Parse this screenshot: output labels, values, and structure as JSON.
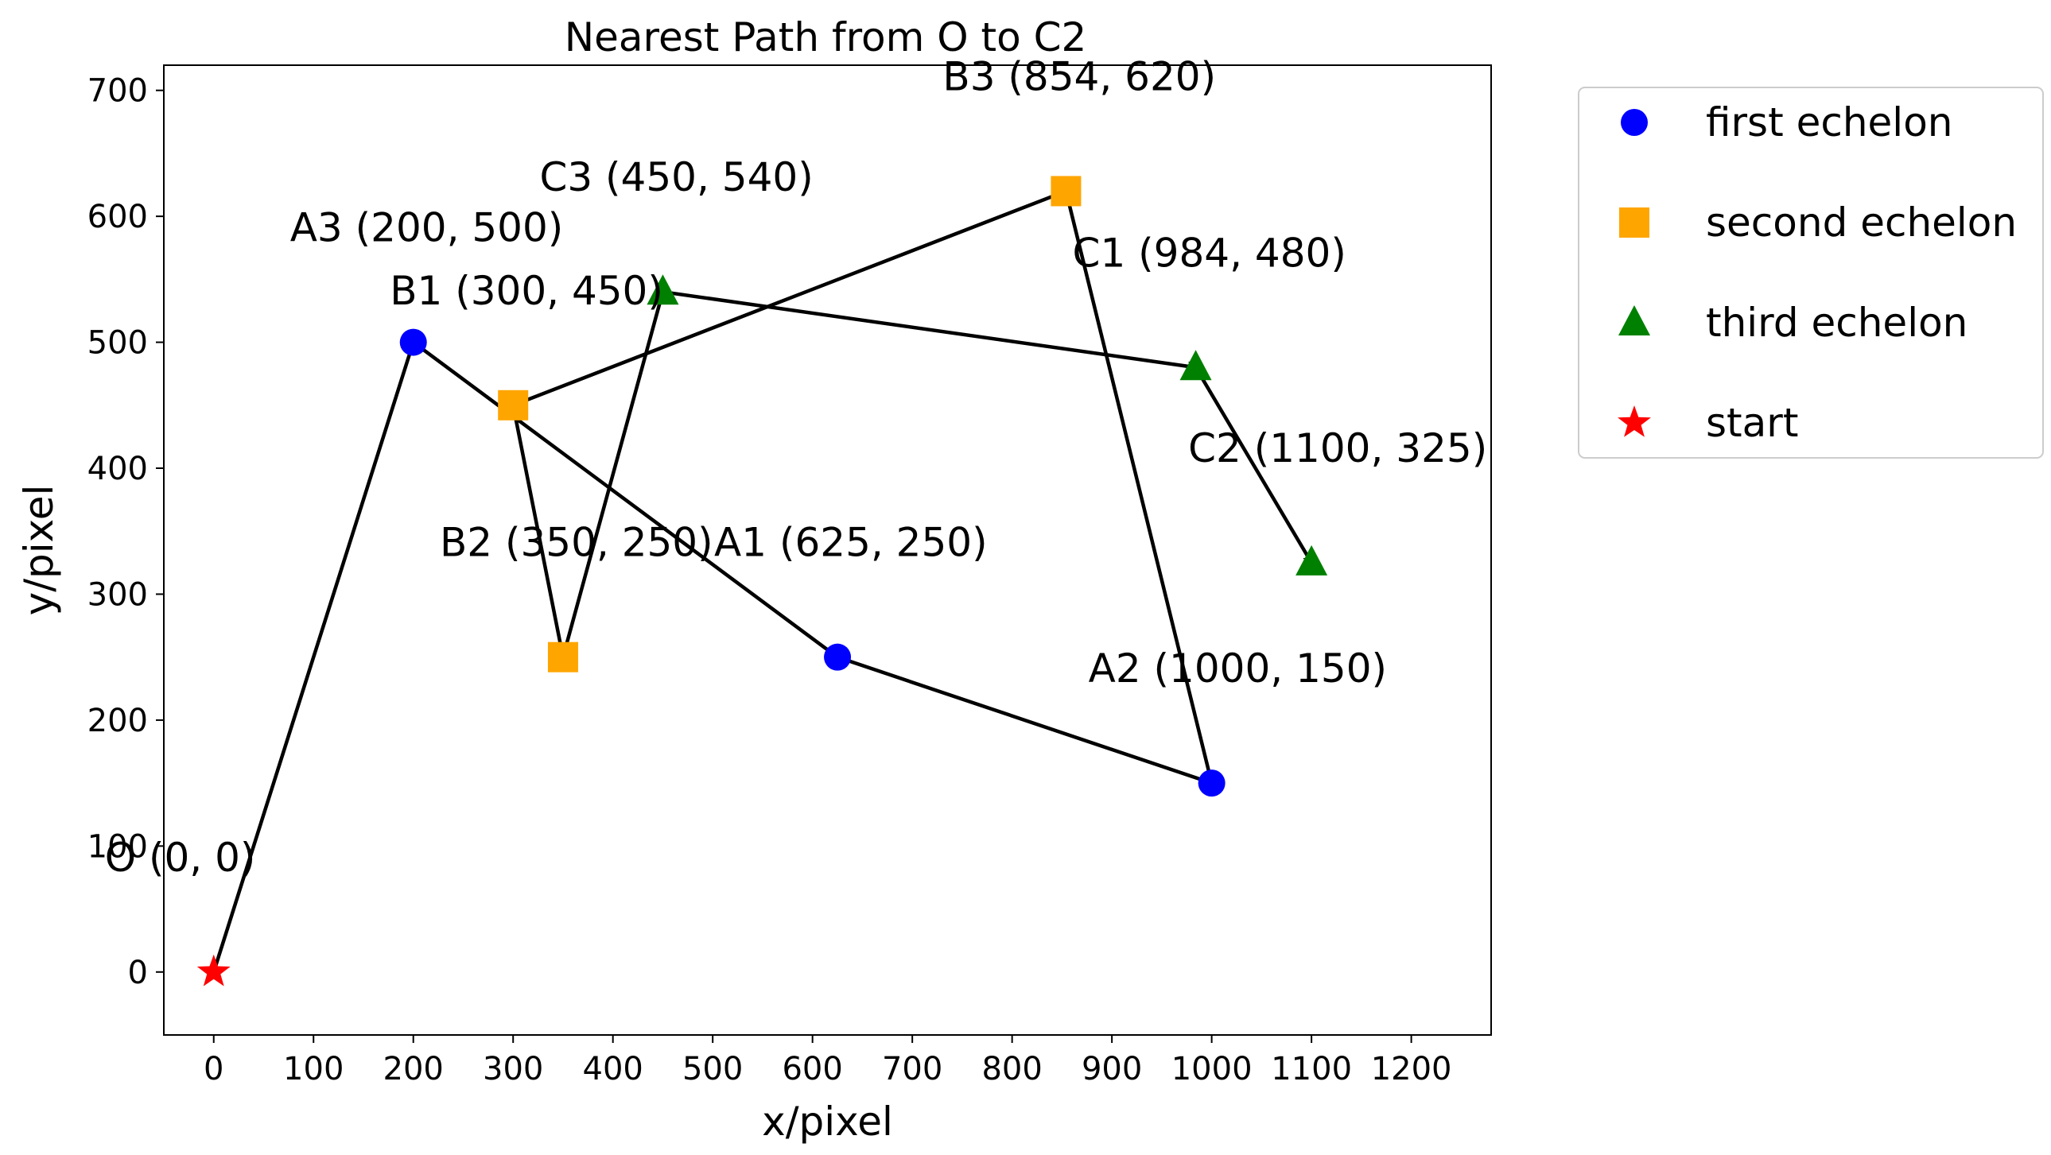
{
  "chart_data": {
    "type": "scatter",
    "title": "Nearest Path from O to C2",
    "xlabel": "x/pixel",
    "ylabel": "y/pixel",
    "xlim": [
      -50,
      1280
    ],
    "ylim": [
      -50,
      720
    ],
    "xticks": [
      0,
      100,
      200,
      300,
      400,
      500,
      600,
      700,
      800,
      900,
      1000,
      1100,
      1200
    ],
    "yticks": [
      0,
      100,
      200,
      300,
      400,
      500,
      600,
      700
    ],
    "grid": false,
    "legend_position": "outside-top-right",
    "series": [
      {
        "name": "first echelon",
        "marker": "circle",
        "color": "#0000ff",
        "points": [
          {
            "id": "A1",
            "x": 625,
            "y": 250
          },
          {
            "id": "A2",
            "x": 1000,
            "y": 150
          },
          {
            "id": "A3",
            "x": 200,
            "y": 500
          }
        ]
      },
      {
        "name": "second echelon",
        "marker": "square",
        "color": "#ffa500",
        "points": [
          {
            "id": "B1",
            "x": 300,
            "y": 450
          },
          {
            "id": "B2",
            "x": 350,
            "y": 250
          },
          {
            "id": "B3",
            "x": 854,
            "y": 620
          }
        ]
      },
      {
        "name": "third echelon",
        "marker": "triangle",
        "color": "#008000",
        "points": [
          {
            "id": "C1",
            "x": 984,
            "y": 480
          },
          {
            "id": "C2",
            "x": 1100,
            "y": 325
          },
          {
            "id": "C3",
            "x": 450,
            "y": 540
          }
        ]
      },
      {
        "name": "start",
        "marker": "star",
        "color": "#ff0000",
        "points": [
          {
            "id": "O",
            "x": 0,
            "y": 0
          }
        ]
      }
    ],
    "annotations": [
      {
        "text": "O (0, 0)",
        "x": 0,
        "y": 0
      },
      {
        "text": "A1 (625, 250)",
        "x": 625,
        "y": 250
      },
      {
        "text": "A2 (1000, 150)",
        "x": 1000,
        "y": 150
      },
      {
        "text": "A3 (200, 500)",
        "x": 200,
        "y": 500
      },
      {
        "text": "B1 (300, 450)",
        "x": 300,
        "y": 450
      },
      {
        "text": "B2 (350, 250)",
        "x": 350,
        "y": 250
      },
      {
        "text": "B3 (854, 620)",
        "x": 854,
        "y": 620
      },
      {
        "text": "C1 (984, 480)",
        "x": 984,
        "y": 480
      },
      {
        "text": "C2 (1100, 325)",
        "x": 1100,
        "y": 325
      },
      {
        "text": "C3 (450, 540)",
        "x": 450,
        "y": 540
      }
    ],
    "path": [
      [
        0,
        0
      ],
      [
        200,
        500
      ],
      [
        625,
        250
      ],
      [
        1000,
        150
      ],
      [
        854,
        620
      ],
      [
        300,
        450
      ],
      [
        350,
        250
      ],
      [
        450,
        540
      ],
      [
        984,
        480
      ],
      [
        1100,
        325
      ]
    ]
  }
}
